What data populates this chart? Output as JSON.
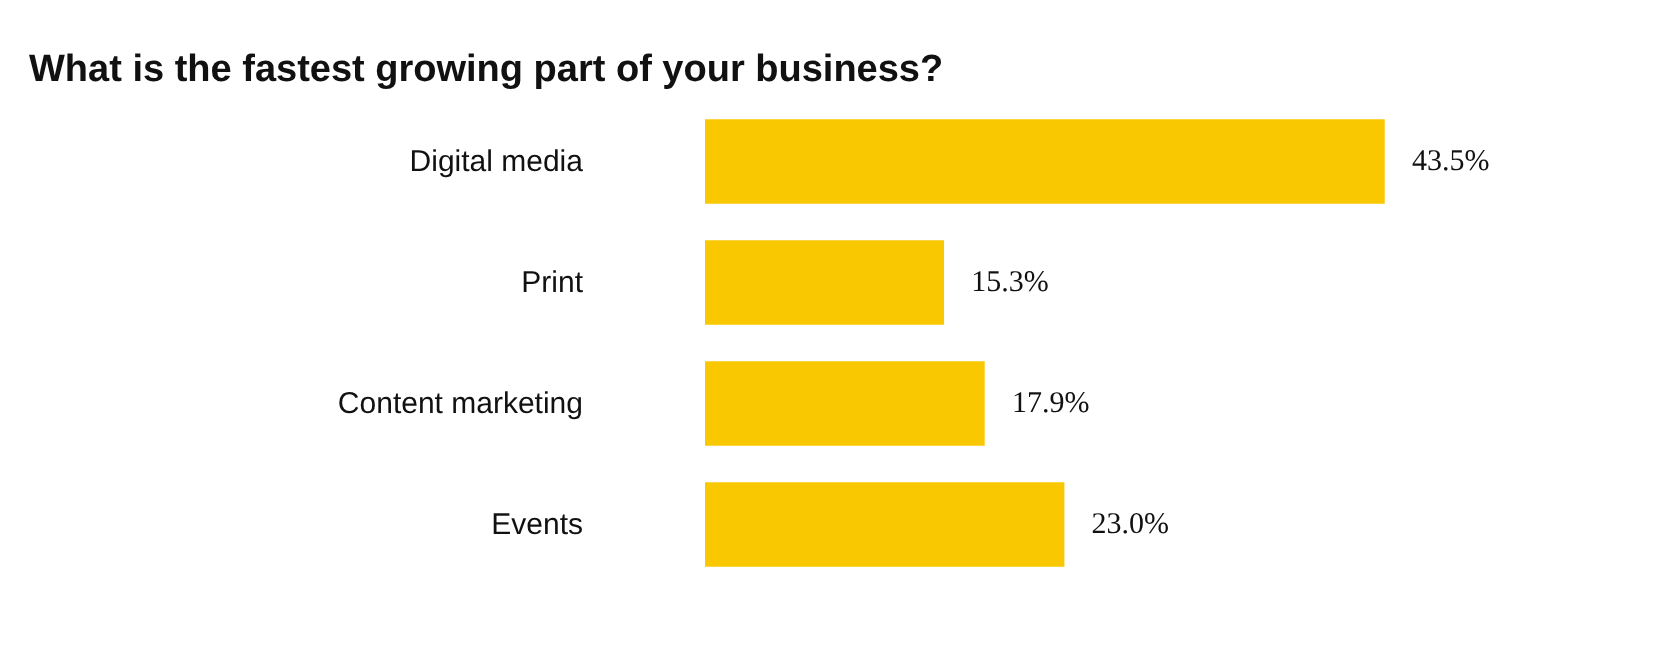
{
  "chart_data": {
    "type": "bar",
    "orientation": "horizontal",
    "title": "What is the fastest growing part of your business?",
    "categories": [
      "Digital media",
      "Print",
      "Content marketing",
      "Events"
    ],
    "values": [
      43.5,
      15.3,
      17.9,
      23.0
    ],
    "value_labels": [
      "43.5%",
      "15.3%",
      "17.9%",
      "23.0%"
    ],
    "color": "#f9c800"
  }
}
